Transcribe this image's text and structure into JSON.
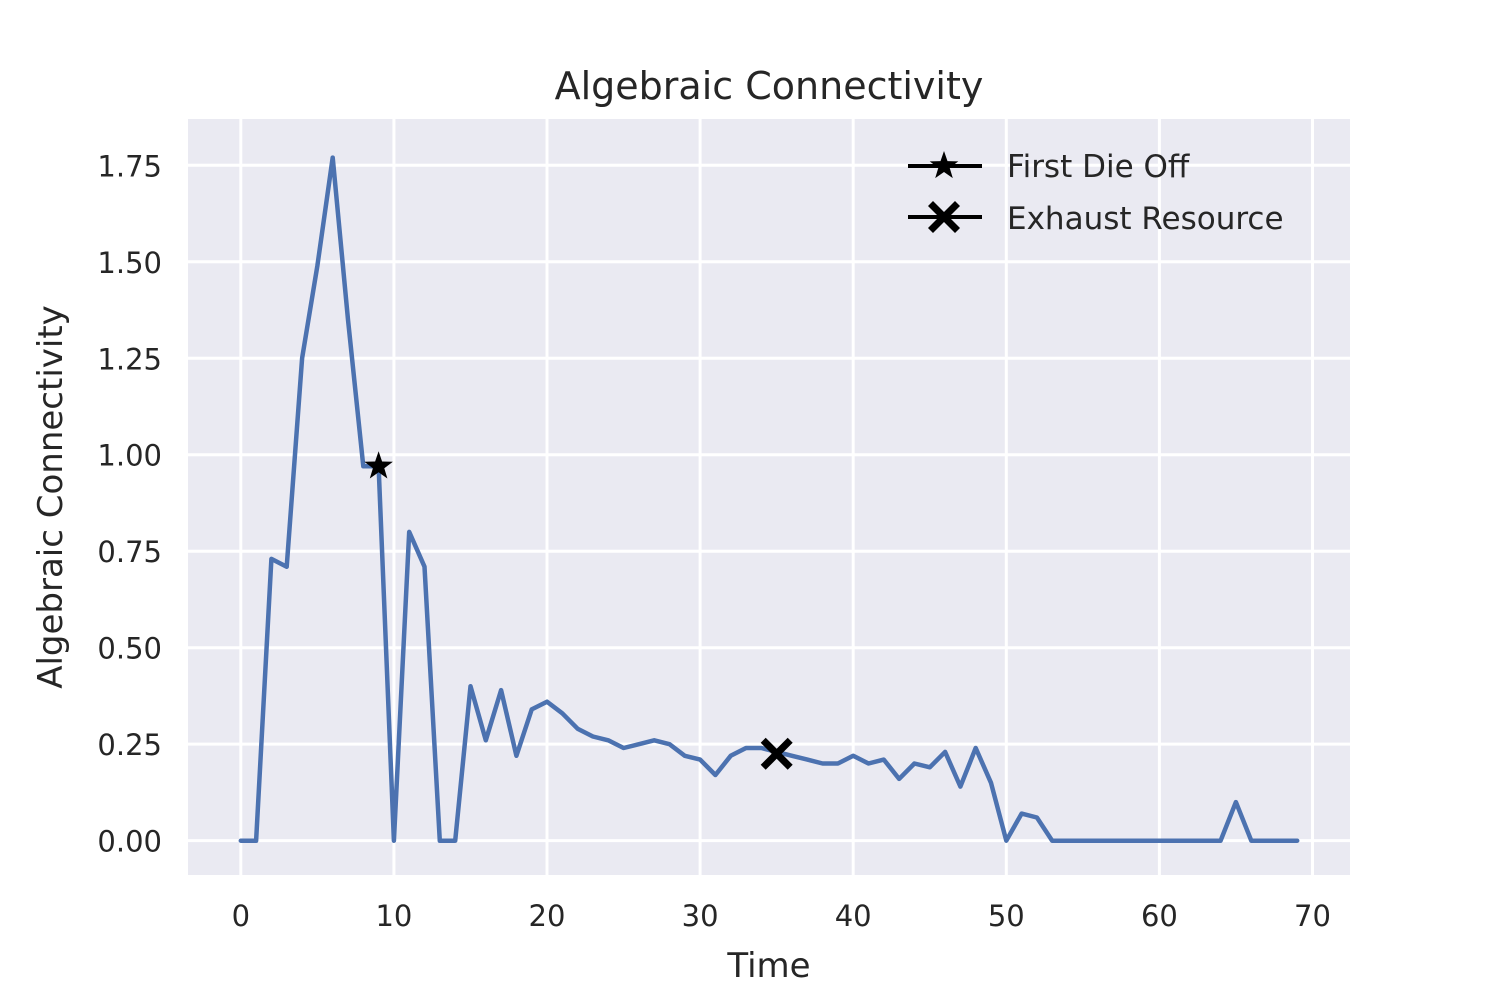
{
  "chart_data": {
    "type": "line",
    "title": "Algebraic Connectivity",
    "xlabel": "Time",
    "ylabel": "Algebraic Connectivity",
    "xlim": [
      -3.45,
      72.45
    ],
    "ylim": [
      -0.089,
      1.87
    ],
    "xticks": [
      0,
      10,
      20,
      30,
      40,
      50,
      60,
      70
    ],
    "yticks": [
      0.0,
      0.25,
      0.5,
      0.75,
      1.0,
      1.25,
      1.5,
      1.75
    ],
    "ytick_labels": [
      "0.00",
      "0.25",
      "0.50",
      "0.75",
      "1.00",
      "1.25",
      "1.50",
      "1.75"
    ],
    "grid": true,
    "background": "#EAEAF2",
    "legend_position": "upper right",
    "series": [
      {
        "color": "#4C72B0",
        "x": [
          0,
          1,
          2,
          3,
          4,
          5,
          6,
          7,
          8,
          9,
          10,
          11,
          12,
          13,
          14,
          15,
          16,
          17,
          18,
          19,
          20,
          21,
          22,
          23,
          24,
          25,
          26,
          27,
          28,
          29,
          30,
          31,
          32,
          33,
          34,
          35,
          36,
          37,
          38,
          39,
          40,
          41,
          42,
          43,
          44,
          45,
          46,
          47,
          48,
          49,
          50,
          51,
          52,
          53,
          54,
          55,
          56,
          57,
          58,
          59,
          60,
          61,
          62,
          63,
          64,
          65,
          66,
          67,
          68,
          69
        ],
        "y": [
          0,
          0,
          0.73,
          0.71,
          1.25,
          1.49,
          1.77,
          1.35,
          0.97,
          0.97,
          0,
          0.8,
          0.71,
          0,
          0,
          0.4,
          0.26,
          0.39,
          0.22,
          0.34,
          0.36,
          0.33,
          0.29,
          0.27,
          0.26,
          0.24,
          0.25,
          0.26,
          0.25,
          0.22,
          0.21,
          0.17,
          0.22,
          0.24,
          0.24,
          0.23,
          0.22,
          0.21,
          0.2,
          0.2,
          0.22,
          0.2,
          0.21,
          0.16,
          0.2,
          0.19,
          0.23,
          0.14,
          0.24,
          0.15,
          0,
          0.07,
          0.06,
          0,
          0,
          0,
          0,
          0,
          0,
          0,
          0,
          0,
          0,
          0,
          0,
          0.1,
          0,
          0,
          0,
          0
        ]
      }
    ],
    "markers": [
      {
        "name": "First Die Off",
        "symbol": "star",
        "x": 9,
        "y": 0.97,
        "color": "#000000"
      },
      {
        "name": "Exhaust Resource",
        "symbol": "x",
        "x": 35,
        "y": 0.225,
        "color": "#000000"
      }
    ]
  }
}
